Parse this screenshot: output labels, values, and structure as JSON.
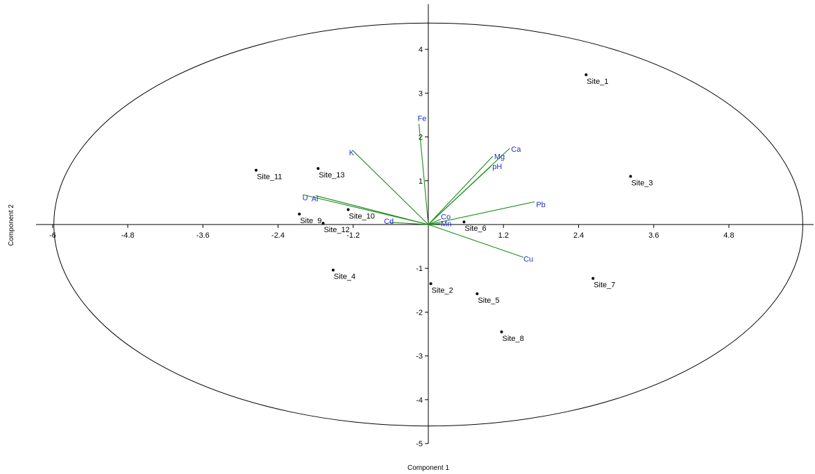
{
  "chart_data": {
    "type": "scatter",
    "xlabel": "Component 1",
    "ylabel": "Component 2",
    "xlim": [
      -6,
      6
    ],
    "ylim": [
      -5,
      5
    ],
    "xticks": [
      -6,
      -4.8,
      -3.6,
      -2.4,
      -1.2,
      1.2,
      2.4,
      3.6,
      4.8
    ],
    "yticks": [
      -5,
      -4,
      -3,
      -2,
      -1,
      1,
      2,
      3,
      4
    ],
    "grid": false,
    "colors": {
      "points": "#000000",
      "loadings": "#1a8a1a",
      "loading_labels": "#1f2fd0",
      "axes": "#000000"
    },
    "confidence_ellipse": {
      "cx": 0,
      "cy": 0,
      "rx": 5.98,
      "ry": 4.6
    },
    "points": [
      {
        "label": "Site_1",
        "x": 2.52,
        "y": 3.42
      },
      {
        "label": "Site_2",
        "x": 0.04,
        "y": -1.35
      },
      {
        "label": "Site_3",
        "x": 3.23,
        "y": 1.1
      },
      {
        "label": "Site_4",
        "x": -1.52,
        "y": -1.04
      },
      {
        "label": "Site_5",
        "x": 0.78,
        "y": -1.58
      },
      {
        "label": "Site_6",
        "x": 0.57,
        "y": 0.06
      },
      {
        "label": "Site_7",
        "x": 2.63,
        "y": -1.23
      },
      {
        "label": "Site_8",
        "x": 1.17,
        "y": -2.45
      },
      {
        "label": "Site_9",
        "x": -2.06,
        "y": 0.24
      },
      {
        "label": "Site_10",
        "x": -1.28,
        "y": 0.34
      },
      {
        "label": "Site_11",
        "x": -2.75,
        "y": 1.24
      },
      {
        "label": "Site_12",
        "x": -1.68,
        "y": 0.03
      },
      {
        "label": "Site_13",
        "x": -1.76,
        "y": 1.28
      }
    ],
    "loadings": [
      {
        "label": "Fe",
        "x": -0.15,
        "y": 2.3
      },
      {
        "label": "K",
        "x": -1.2,
        "y": 1.68
      },
      {
        "label": "Ca",
        "x": 1.3,
        "y": 1.74
      },
      {
        "label": "Mg",
        "x": 1.03,
        "y": 1.56
      },
      {
        "label": "pH",
        "x": 1.0,
        "y": 1.33
      },
      {
        "label": "Pb",
        "x": 1.7,
        "y": 0.52
      },
      {
        "label": "Cu",
        "x": 1.52,
        "y": -0.75
      },
      {
        "label": "U",
        "x": -2.0,
        "y": 0.68
      },
      {
        "label": "Al",
        "x": -1.8,
        "y": 0.66
      },
      {
        "label": "Cd",
        "x": -0.62,
        "y": 0.05
      },
      {
        "label": "Co",
        "x": 0.2,
        "y": 0.12
      },
      {
        "label": "Mn",
        "x": 0.2,
        "y": 0.02
      }
    ]
  }
}
